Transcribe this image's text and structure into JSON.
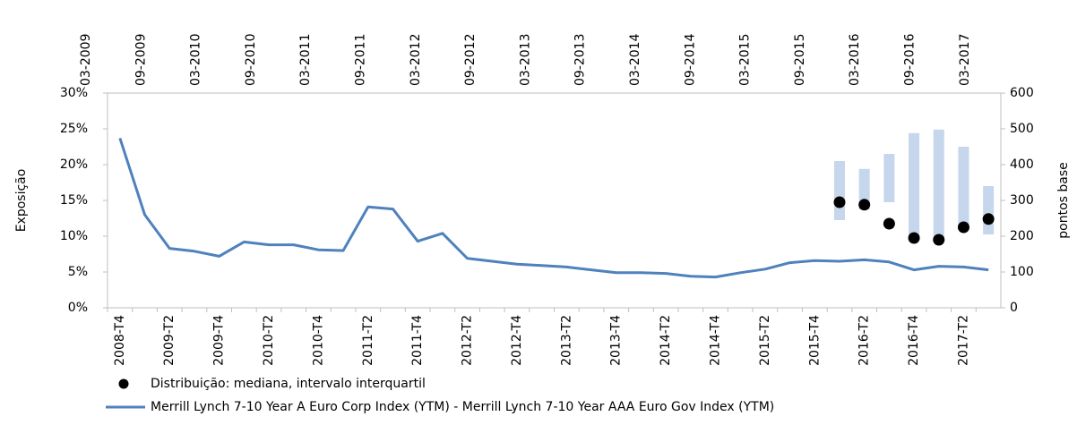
{
  "chart_data": {
    "type": "line",
    "ylabel": "Exposição",
    "y2label": "pontos base",
    "categories": [
      "2008-T4",
      null,
      "2009-T2",
      null,
      "2009-T4",
      null,
      "2010-T2",
      null,
      "2010-T4",
      null,
      "2011-T2",
      null,
      "2011-T4",
      null,
      "2012-T2",
      null,
      "2012-T4",
      null,
      "2013-T2",
      null,
      "2013-T4",
      null,
      "2014-T2",
      null,
      "2014-T4",
      null,
      "2015-T2",
      null,
      "2015-T4",
      null,
      "2016-T2",
      null,
      "2016-T4",
      null,
      "2017-T2",
      null
    ],
    "x2_categories": [
      "03-2009",
      "09-2009",
      "03-2010",
      "09-2010",
      "03-2011",
      "09-2011",
      "03-2012",
      "09-2012",
      "03-2013",
      "09-2013",
      "03-2014",
      "09-2014",
      "03-2015",
      "09-2015",
      "03-2016",
      "09-2016",
      "03-2017"
    ],
    "ylim": [
      0,
      30
    ],
    "yticks": [
      {
        "value": 0,
        "label": "0%"
      },
      {
        "value": 5,
        "label": "5%"
      },
      {
        "value": 10,
        "label": "10%"
      },
      {
        "value": 15,
        "label": "15%"
      },
      {
        "value": 20,
        "label": "20%"
      },
      {
        "value": 25,
        "label": "25%"
      },
      {
        "value": 30,
        "label": "30%"
      }
    ],
    "y2lim": [
      0,
      600
    ],
    "y2ticks": [
      0,
      100,
      200,
      300,
      400,
      500,
      600
    ],
    "grid": false,
    "series": [
      {
        "name": "Distribuição: mediana, intervalo interquartil",
        "type": "scatter",
        "axis": "y2",
        "color": "#000000",
        "range_color": "#c6d6ec",
        "values": [
          null,
          null,
          null,
          null,
          null,
          null,
          null,
          null,
          null,
          null,
          null,
          null,
          null,
          null,
          null,
          null,
          null,
          null,
          null,
          null,
          null,
          null,
          null,
          null,
          null,
          null,
          null,
          null,
          null,
          295,
          288,
          235,
          195,
          190,
          225,
          248
        ],
        "low": [
          null,
          null,
          null,
          null,
          null,
          null,
          null,
          null,
          null,
          null,
          null,
          null,
          null,
          null,
          null,
          null,
          null,
          null,
          null,
          null,
          null,
          null,
          null,
          null,
          null,
          null,
          null,
          null,
          null,
          245,
          275,
          295,
          203,
          190,
          225,
          205
        ],
        "high": [
          null,
          null,
          null,
          null,
          null,
          null,
          null,
          null,
          null,
          null,
          null,
          null,
          null,
          null,
          null,
          null,
          null,
          null,
          null,
          null,
          null,
          null,
          null,
          null,
          null,
          null,
          null,
          null,
          null,
          410,
          388,
          430,
          488,
          498,
          450,
          340
        ]
      },
      {
        "name": "Merrill Lynch 7-10 Year A Euro Corp Index (YTM) - Merrill Lynch 7-10 Year AAA Euro Gov Index (YTM)",
        "type": "line",
        "color": "#4f81bd",
        "values": [
          23.7,
          13.0,
          8.3,
          7.9,
          7.2,
          9.2,
          8.8,
          8.8,
          8.1,
          8.0,
          14.1,
          13.8,
          9.3,
          10.4,
          6.9,
          6.5,
          6.1,
          5.9,
          5.7,
          5.3,
          4.9,
          4.9,
          4.8,
          4.4,
          4.3,
          4.9,
          5.4,
          6.3,
          6.6,
          6.5,
          6.7,
          6.4,
          5.3,
          5.8,
          5.7,
          5.3
        ]
      }
    ]
  }
}
